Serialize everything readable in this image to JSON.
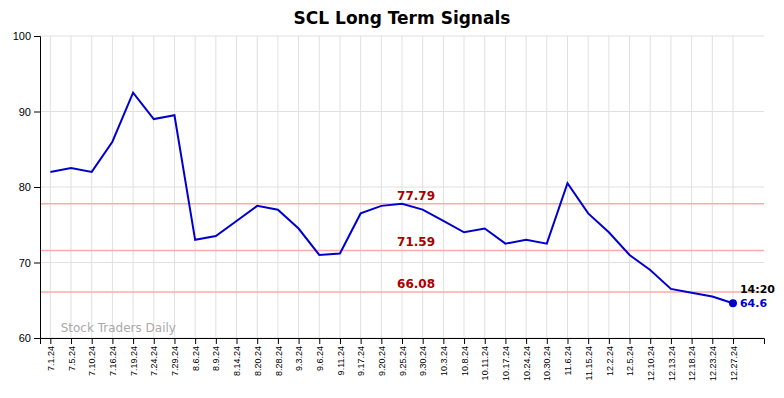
{
  "chart_data": {
    "type": "line",
    "title": "SCL Long Term Signals",
    "categories": [
      "7.1.24",
      "7.5.24",
      "7.10.24",
      "7.16.24",
      "7.19.24",
      "7.24.24",
      "7.29.24",
      "8.6.24",
      "8.9.24",
      "8.14.24",
      "8.20.24",
      "8.28.24",
      "9.3.24",
      "9.6.24",
      "9.11.24",
      "9.17.24",
      "9.20.24",
      "9.25.24",
      "9.30.24",
      "10.3.24",
      "10.8.24",
      "10.11.24",
      "10.17.24",
      "10.24.24",
      "10.30.24",
      "11.6.24",
      "11.15.24",
      "12.2.24",
      "12.5.24",
      "12.10.24",
      "12.13.24",
      "12.18.24",
      "12.23.24",
      "12.27.24"
    ],
    "values": [
      82.0,
      82.5,
      82.0,
      86.0,
      92.5,
      89.0,
      89.5,
      73.0,
      73.5,
      75.5,
      77.5,
      77.0,
      74.5,
      71.0,
      71.2,
      76.5,
      77.5,
      77.79,
      77.0,
      75.5,
      74.0,
      74.5,
      72.5,
      73.0,
      72.5,
      80.5,
      76.5,
      74.0,
      71.0,
      69.0,
      66.5,
      66.0,
      65.5,
      64.6
    ],
    "color": "#0000cc",
    "ylim": [
      60,
      100
    ],
    "yticks": [
      60,
      70,
      80,
      90,
      100
    ],
    "grid": true,
    "hlines": [
      {
        "value": 77.79,
        "color": "#ffaaaa"
      },
      {
        "value": 71.59,
        "color": "#ffaaaa"
      },
      {
        "value": 66.08,
        "color": "#ffaaaa"
      }
    ],
    "annotations": [
      "14:20",
      "64.6",
      "Stock Traders Daily"
    ]
  }
}
